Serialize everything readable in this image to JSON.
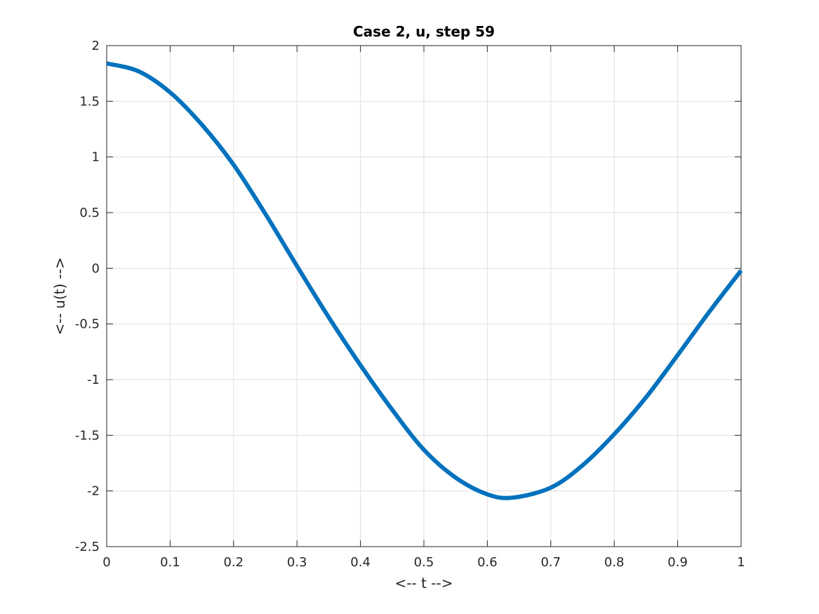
{
  "chart_data": {
    "type": "line",
    "title": "Case 2, u, step 59",
    "xlabel": "<-- t -->",
    "ylabel": "<-- u(t) -->",
    "xlim": [
      0,
      1
    ],
    "ylim": [
      -2.5,
      2
    ],
    "grid": true,
    "xticks": [
      0,
      0.1,
      0.2,
      0.3,
      0.4,
      0.5,
      0.6,
      0.7,
      0.8,
      0.9,
      1
    ],
    "xtick_labels": [
      "0",
      "0.1",
      "0.2",
      "0.3",
      "0.4",
      "0.5",
      "0.6",
      "0.7",
      "0.8",
      "0.9",
      "1"
    ],
    "yticks": [
      2,
      1.5,
      1,
      0.5,
      0,
      -0.5,
      -1,
      -1.5,
      -2,
      -2.5
    ],
    "ytick_labels": [
      "2",
      "1.5",
      "1",
      "0.5",
      "0",
      "-0.5",
      "-1",
      "-1.5",
      "-2",
      "-2.5"
    ],
    "series": [
      {
        "color": "#0072BD",
        "x": [
          0,
          0.05,
          0.1,
          0.15,
          0.2,
          0.25,
          0.3,
          0.35,
          0.4,
          0.45,
          0.5,
          0.55,
          0.6,
          0.64,
          0.7,
          0.75,
          0.8,
          0.85,
          0.9,
          0.95,
          1.0
        ],
        "y": [
          1.84,
          1.77,
          1.58,
          1.29,
          0.93,
          0.49,
          0.02,
          -0.44,
          -0.87,
          -1.27,
          -1.63,
          -1.88,
          -2.03,
          -2.06,
          -1.97,
          -1.77,
          -1.49,
          -1.16,
          -0.78,
          -0.39,
          -0.02
        ]
      }
    ]
  }
}
